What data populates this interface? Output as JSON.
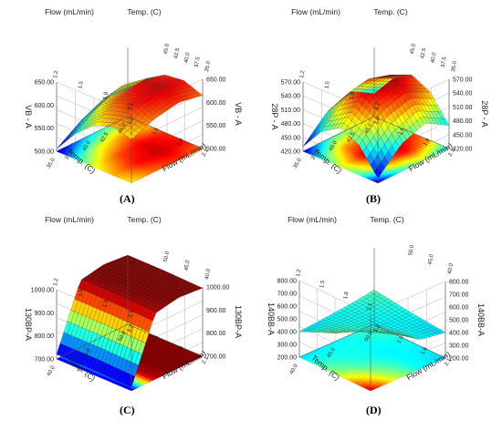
{
  "captions": [
    "(A)",
    "(B)",
    "(C)",
    "(D)"
  ],
  "chart_data": [
    {
      "type": "surface3d",
      "caption": "(A)",
      "zlabel": "VB - A",
      "x_axis_label": "Flow (mL/min)",
      "y_axis_label": "Temp. (C)",
      "x_ticks": [
        "1.2",
        "1.5",
        "1.8",
        "2.1"
      ],
      "y_ticks": [
        "35.0",
        "37.5",
        "40.0",
        "42.5",
        "45.0"
      ],
      "z_ticks": [
        "500.00",
        "550.00",
        "600.00",
        "650.00"
      ],
      "zlim": [
        500,
        650
      ],
      "surface": [
        [
          560,
          600,
          625,
          630,
          615
        ],
        [
          565,
          610,
          635,
          640,
          625
        ],
        [
          540,
          590,
          620,
          630,
          615
        ],
        [
          505,
          555,
          590,
          605,
          595
        ]
      ]
    },
    {
      "type": "surface3d",
      "caption": "(B)",
      "zlabel": "28P - A",
      "x_axis_label": "Flow (mL/min)",
      "y_axis_label": "Temp. (C)",
      "x_ticks": [
        "1.2",
        "1.5",
        "1.8",
        "2.1"
      ],
      "y_ticks": [
        "35.0",
        "37.5",
        "40.0",
        "42.5",
        "45.0"
      ],
      "z_ticks": [
        "420.00",
        "450.00",
        "480.00",
        "510.00",
        "540.00",
        "570.00"
      ],
      "zlim": [
        420,
        570
      ],
      "surface": [
        [
          470,
          520,
          545,
          525,
          470
        ],
        [
          500,
          545,
          570,
          550,
          500
        ],
        [
          480,
          530,
          555,
          535,
          480
        ],
        [
          430,
          480,
          505,
          485,
          430
        ]
      ]
    },
    {
      "type": "surface3d",
      "caption": "(C)",
      "zlabel": "130BP-A",
      "x_axis_label": "Flow (mL/min)",
      "y_axis_label": "Temp. (C)",
      "x_ticks": [
        "1.2",
        "1.5",
        "1.8",
        "2.1"
      ],
      "y_ticks": [
        "40.0",
        "45.0",
        "50.0"
      ],
      "z_ticks": [
        "700.00",
        "800.00",
        "900.00",
        "1000.00"
      ],
      "zlim": [
        700,
        1000
      ],
      "surface": [
        [
          1000,
          1000,
          995
        ],
        [
          1010,
          1010,
          1005
        ],
        [
          990,
          990,
          985
        ],
        [
          720,
          720,
          715
        ]
      ]
    },
    {
      "type": "surface3d",
      "caption": "(D)",
      "zlabel": "140BB-A",
      "x_axis_label": "Flow (mL/min)",
      "y_axis_label": "Temp. (C)",
      "x_ticks": [
        "1.2",
        "1.5",
        "1.8",
        "2.1"
      ],
      "y_ticks": [
        "40.0",
        "45.0",
        "50.0"
      ],
      "z_ticks": [
        "200.00",
        "300.00",
        "400.00",
        "500.00",
        "600.00",
        "700.00",
        "800.00"
      ],
      "zlim": [
        200,
        800
      ],
      "surface": [
        [
          470,
          430,
          400
        ],
        [
          440,
          420,
          430
        ],
        [
          420,
          450,
          560
        ],
        [
          400,
          520,
          760
        ]
      ]
    }
  ]
}
